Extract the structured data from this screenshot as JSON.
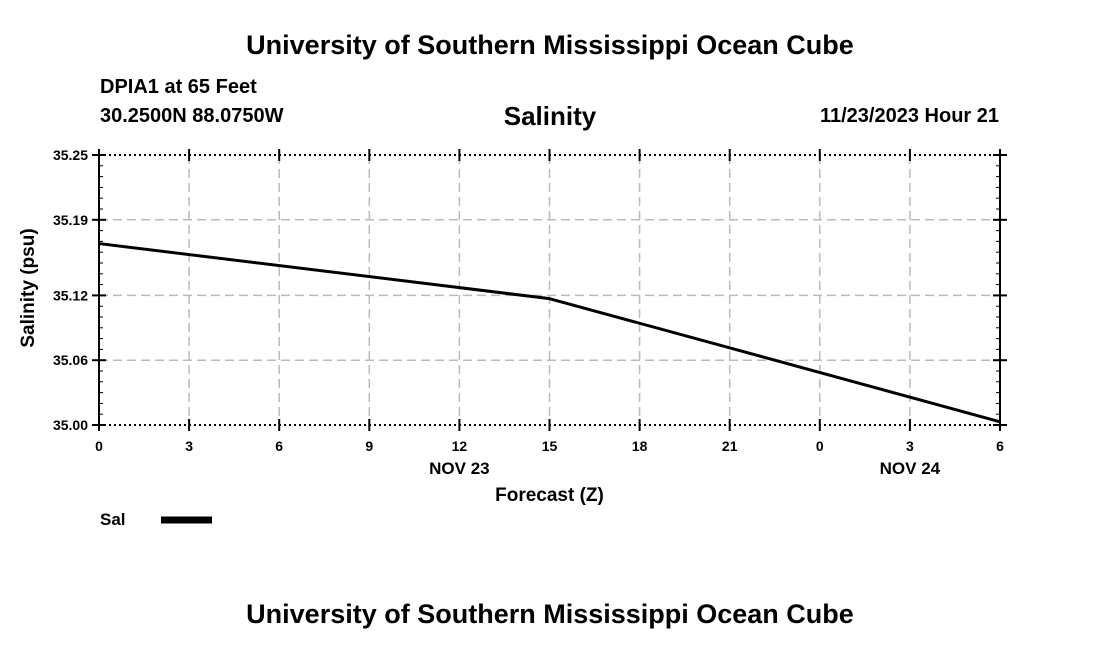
{
  "header": {
    "title": "University of Southern Mississippi Ocean Cube",
    "station": "DPIA1 at 65 Feet",
    "coordinates": "30.2500N  88.0750W",
    "datetime": "11/23/2023 Hour 21"
  },
  "footer": {
    "title": "University of Southern Mississippi Ocean Cube"
  },
  "colors": {
    "line": "#000000",
    "grid": "#bbbbbb",
    "background": "#ffffff"
  },
  "chart_data": {
    "type": "line",
    "title": "Salinity",
    "xlabel": "Forecast (Z)",
    "ylabel": "Salinity (psu)",
    "ylim": [
      35.0,
      35.25
    ],
    "y_ticks": [
      "35.25",
      "35.19",
      "35.12",
      "35.06",
      "35.00"
    ],
    "y_tick_values": [
      35.25,
      35.19,
      35.12,
      35.06,
      35.0
    ],
    "xlim": [
      0,
      30
    ],
    "x_ticks": [
      "0",
      "3",
      "6",
      "9",
      "12",
      "15",
      "18",
      "21",
      "0",
      "3",
      "6"
    ],
    "x_tick_hours": [
      0,
      3,
      6,
      9,
      12,
      15,
      18,
      21,
      24,
      27,
      30
    ],
    "x_day_labels": [
      {
        "label": "NOV 23",
        "hour": 12
      },
      {
        "label": "NOV 24",
        "hour": 27
      }
    ],
    "grid": true,
    "legend_position": "bottom-left",
    "series": [
      {
        "name": "Sal",
        "x": [
          0,
          15,
          30
        ],
        "values": [
          35.168,
          35.117,
          35.003
        ]
      }
    ]
  }
}
